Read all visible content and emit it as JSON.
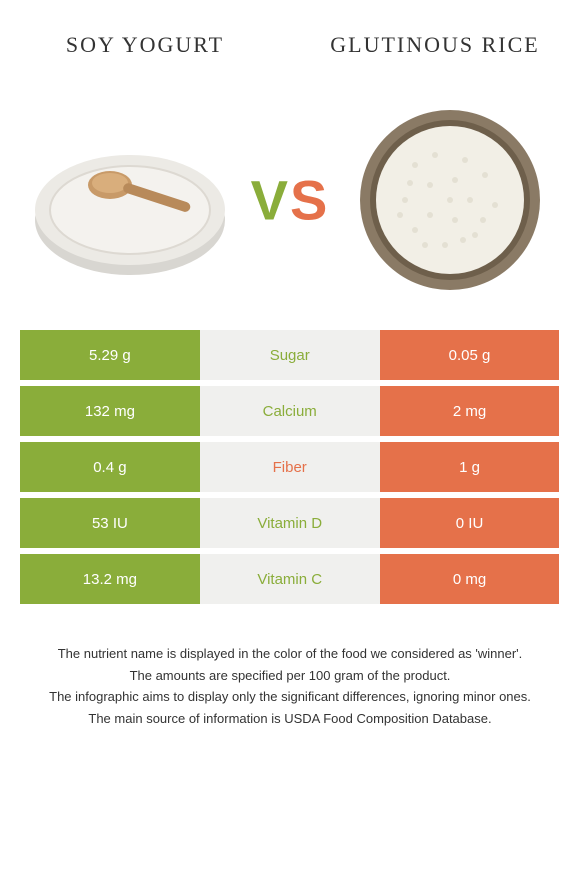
{
  "header": {
    "left_title": "SOY YOGURT",
    "right_title": "GLUTINOUS RICE"
  },
  "vs": {
    "v": "V",
    "s": "S"
  },
  "colors": {
    "left": "#8aad3a",
    "right": "#e5714a",
    "mid_bg": "#f0f0ee",
    "text_dark": "#333333"
  },
  "images": {
    "left": {
      "bowl_fill": "#f4f2ee",
      "bowl_rim": "#d8d6d1",
      "spoon": "#b88a5a"
    },
    "right": {
      "bowl_rim": "#8a7a65",
      "bowl_inner": "#6e5f4b",
      "rice": "#f2efe6",
      "grain": "#e4e0d3"
    }
  },
  "rows": [
    {
      "label": "Sugar",
      "left": "5.29 g",
      "right": "0.05 g",
      "winner": "left"
    },
    {
      "label": "Calcium",
      "left": "132 mg",
      "right": "2 mg",
      "winner": "left"
    },
    {
      "label": "Fiber",
      "left": "0.4 g",
      "right": "1 g",
      "winner": "right"
    },
    {
      "label": "Vitamin D",
      "left": "53 IU",
      "right": "0 IU",
      "winner": "left"
    },
    {
      "label": "Vitamin C",
      "left": "13.2 mg",
      "right": "0 mg",
      "winner": "left"
    }
  ],
  "footer": {
    "line1": "The nutrient name is displayed in the color of the food we considered as 'winner'.",
    "line2": "The amounts are specified per 100 gram of the product.",
    "line3": "The infographic aims to display only the significant differences, ignoring minor ones.",
    "line4": "The main source of information is USDA Food Composition Database."
  }
}
